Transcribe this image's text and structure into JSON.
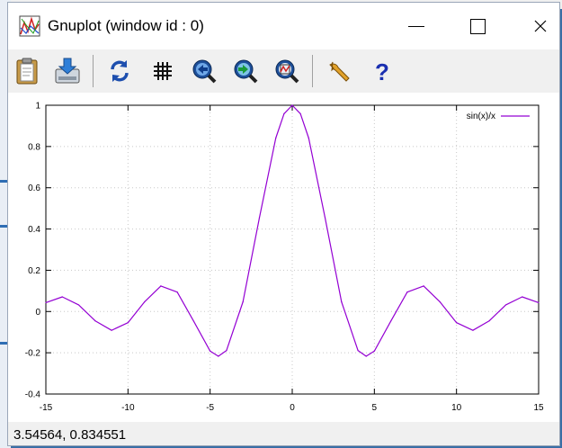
{
  "window": {
    "title": "Gnuplot (window id : 0)"
  },
  "toolbar": {
    "buttons": [
      {
        "name": "copy-to-clipboard-button",
        "icon": "clipboard-icon"
      },
      {
        "name": "save-button",
        "icon": "save-icon"
      },
      {
        "name": "replot-button",
        "icon": "refresh-icon"
      },
      {
        "name": "grid-toggle-button",
        "icon": "grid-icon"
      },
      {
        "name": "previous-zoom-button",
        "icon": "zoom-back-icon"
      },
      {
        "name": "next-zoom-button",
        "icon": "zoom-forward-icon"
      },
      {
        "name": "autoscale-button",
        "icon": "zoom-autoscale-icon"
      },
      {
        "name": "options-button",
        "icon": "wrench-icon"
      },
      {
        "name": "help-button",
        "icon": "help-icon"
      }
    ]
  },
  "status": {
    "coords": "3.54564,  0.834551"
  },
  "chart_data": {
    "type": "line",
    "title": "",
    "xlabel": "",
    "ylabel": "",
    "xlim": [
      -15,
      15
    ],
    "ylim": [
      -0.4,
      1
    ],
    "x_ticks": [
      "-15",
      "-10",
      "-5",
      "0",
      "5",
      "10",
      "15"
    ],
    "y_ticks": [
      "-0.4",
      "-0.2",
      "0",
      "0.2",
      "0.4",
      "0.6",
      "0.8",
      "1"
    ],
    "grid": true,
    "legend_position": "top-right",
    "series": [
      {
        "name": "sin(x)/x",
        "color": "#9400d3",
        "x": [
          -15,
          -14,
          -13,
          -12,
          -11,
          -10,
          -9,
          -8,
          -7,
          -6,
          -5,
          -4.5,
          -4,
          -3,
          -2,
          -1,
          -0.5,
          0,
          0.5,
          1,
          2,
          3,
          4,
          4.5,
          5,
          6,
          7,
          8,
          9,
          10,
          11,
          12,
          13,
          14,
          15
        ],
        "y": [
          0.043,
          0.071,
          0.032,
          -0.045,
          -0.091,
          -0.054,
          0.046,
          0.124,
          0.094,
          -0.047,
          -0.192,
          -0.217,
          -0.189,
          0.047,
          0.455,
          0.841,
          0.959,
          1,
          0.959,
          0.841,
          0.455,
          0.047,
          -0.189,
          -0.217,
          -0.192,
          -0.047,
          0.094,
          0.124,
          0.046,
          -0.054,
          -0.091,
          -0.045,
          0.032,
          0.071,
          0.043
        ]
      }
    ]
  }
}
